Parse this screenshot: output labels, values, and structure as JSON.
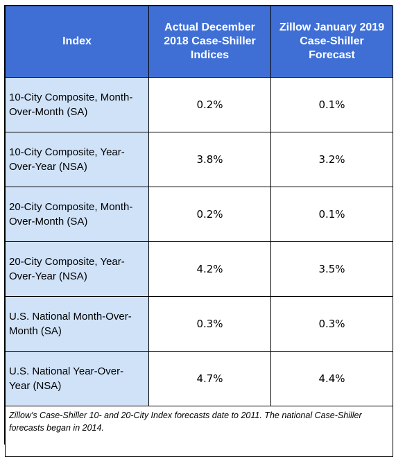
{
  "table": {
    "headers": [
      "Index",
      "Actual December 2018 Case-Shiller Indices",
      "Zillow January 2019 Case-Shiller Forecast"
    ],
    "rows": [
      {
        "index": "10-City Composite, Month-Over-Month (SA)",
        "actual": "0.2%",
        "forecast": "0.1%"
      },
      {
        "index": "10-City Composite, Year-Over-Year (NSA)",
        "actual": "3.8%",
        "forecast": "3.2%"
      },
      {
        "index": "20-City Composite, Month-Over-Month (SA)",
        "actual": "0.2%",
        "forecast": "0.1%"
      },
      {
        "index": "20-City Composite, Year-Over-Year (NSA)",
        "actual": "4.2%",
        "forecast": "3.5%"
      },
      {
        "index": "U.S. National Month-Over-Month (SA)",
        "actual": "0.3%",
        "forecast": "0.3%"
      },
      {
        "index": "U.S. National Year-Over-Year (NSA)",
        "actual": "4.7%",
        "forecast": "4.4%"
      }
    ],
    "footnote": "Zillow's Case-Shiller 10- and 20-City Index forecasts date to 2011.  The national Case-Shiller forecasts began in 2014."
  },
  "colors": {
    "header_bg": "#3f6fd4",
    "label_bg": "#cfe2f8",
    "header_text": "#ffffff"
  }
}
